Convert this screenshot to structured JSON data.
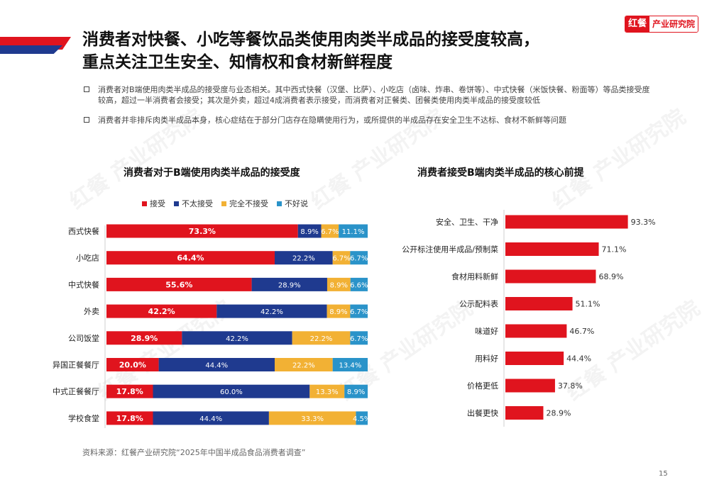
{
  "header": {
    "title_line1": "消费者对快餐、小吃等餐饮品类使用肉类半成品的接受度较高，",
    "title_line2": "重点关注卫生安全、知情权和食材新鲜程度"
  },
  "logo": {
    "part1": "红餐",
    "part2": "产业研究院"
  },
  "watermark": "红餐 产业研究院",
  "bullets": [
    "消费者对B端使用肉类半成品的接受度与业态相关。其中西式快餐（汉堡、比萨）、小吃店（卤味、炸串、卷饼等）、中式快餐（米饭快餐、粉面等）等品类接受度较高，超过一半消费者会接受；其次是外卖，超过4成消费者表示接受，而消费者对正餐类、团餐类使用肉类半成品的接受度较低",
    "消费者并非排斥肉类半成品本身，核心症结在于部分门店存在隐瞒使用行为，或所提供的半成品存在安全卫生不达标、食材不新鲜等问题"
  ],
  "colors": {
    "red": "#e0141e",
    "navy": "#1f3a8f",
    "yellow": "#f2b134",
    "cyan": "#2a93c9",
    "brand": "#e0141e"
  },
  "chart_data": [
    {
      "type": "bar",
      "orientation": "horizontal",
      "stacked": true,
      "title": "消费者对于B端使用肉类半成品的接受度",
      "unit": "%",
      "legend_position": "top",
      "categories": [
        "西式快餐",
        "小吃店",
        "中式快餐",
        "外卖",
        "公司饭堂",
        "异国正餐餐厅",
        "中式正餐餐厅",
        "学校食堂"
      ],
      "series": [
        {
          "name": "接受",
          "color": "#e0141e",
          "values": [
            73.3,
            64.4,
            55.6,
            42.2,
            28.9,
            20.0,
            17.8,
            17.8
          ]
        },
        {
          "name": "不太接受",
          "color": "#1f3a8f",
          "values": [
            8.9,
            22.2,
            28.9,
            42.2,
            42.2,
            44.4,
            60.0,
            44.4
          ]
        },
        {
          "name": "完全不接受",
          "color": "#f2b134",
          "values": [
            6.7,
            6.7,
            8.9,
            8.9,
            22.2,
            22.2,
            13.3,
            33.3
          ]
        },
        {
          "name": "不好说",
          "color": "#2a93c9",
          "values": [
            11.1,
            6.7,
            6.6,
            6.7,
            6.7,
            13.4,
            8.9,
            4.5
          ]
        }
      ]
    },
    {
      "type": "bar",
      "orientation": "horizontal",
      "title": "消费者接受B端肉类半成品的核心前提",
      "unit": "%",
      "categories": [
        "安全、卫生、干净",
        "公开标注使用半成品/预制菜",
        "食材用料新鲜",
        "公示配料表",
        "味道好",
        "用料好",
        "价格更低",
        "出餐更快"
      ],
      "values": [
        93.3,
        71.1,
        68.9,
        51.1,
        46.7,
        44.4,
        37.8,
        28.9
      ],
      "color": "#e0141e"
    }
  ],
  "footer": {
    "source": "资料来源：红餐产业研究院“2025年中国半成品食品消费者调查”",
    "page": "15"
  }
}
